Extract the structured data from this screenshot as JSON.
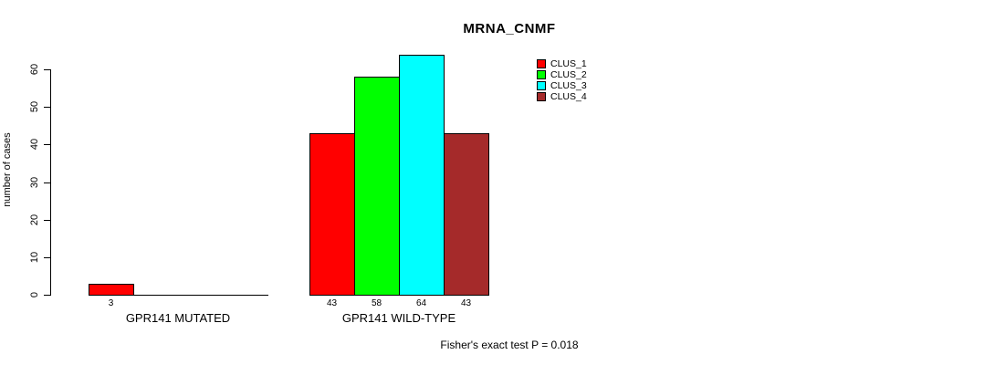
{
  "title": "MRNA_CNMF",
  "annotation": "Fisher's exact test P = 0.018",
  "chart_data": {
    "type": "bar",
    "title": "MRNA_CNMF",
    "xlabel": "",
    "ylabel": "number of cases",
    "ylim": [
      0,
      60
    ],
    "yticks": [
      0,
      10,
      20,
      30,
      40,
      50,
      60
    ],
    "categories": [
      "GPR141 MUTATED",
      "GPR141 WILD-TYPE"
    ],
    "series": [
      {
        "name": "CLUS_1",
        "color": "#FF0000",
        "values": [
          3,
          43
        ]
      },
      {
        "name": "CLUS_2",
        "color": "#00FF00",
        "values": [
          0,
          58
        ]
      },
      {
        "name": "CLUS_3",
        "color": "#00FFFF",
        "values": [
          0,
          64
        ]
      },
      {
        "name": "CLUS_4",
        "color": "#A52A2A",
        "values": [
          0,
          43
        ]
      }
    ],
    "bar_value_labels": {
      "GPR141 MUTATED": [
        3
      ],
      "GPR141 WILD-TYPE": [
        43,
        58,
        64,
        43
      ]
    },
    "legend_position": "top-right",
    "grid": false,
    "annotation": "Fisher's exact test P = 0.018"
  }
}
